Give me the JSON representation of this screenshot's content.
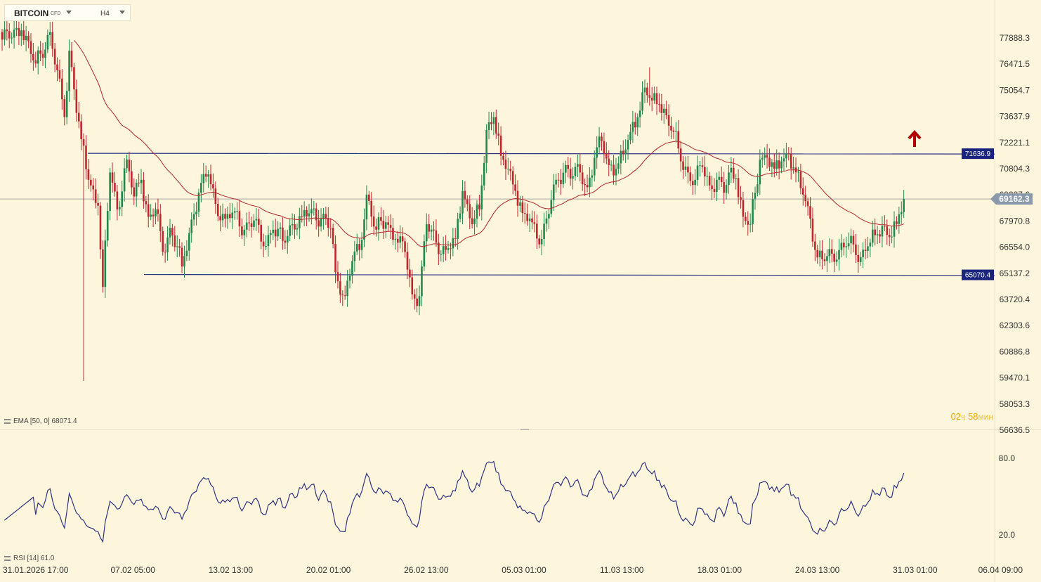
{
  "toolbar": {
    "symbol": "BITCOIN",
    "symbol_type": "CFD",
    "timeframe": "H4"
  },
  "timer": {
    "hours": "02",
    "hours_unit": "ч",
    "minutes": "58",
    "minutes_unit": "мин"
  },
  "indicators": {
    "ema_label": "EMA [50, 0] 68071.4",
    "rsi_label": "RSI [14] 61.0"
  },
  "colors": {
    "background": "#fdf5dc",
    "bull": "#1f8a4c",
    "bear": "#c0272d",
    "ema": "#b3262b",
    "rsi": "#2e3382",
    "level_line": "#2e3382",
    "level_tag": "#1a237e",
    "price_tag": "#8a9aaa",
    "arrow": "#b00000"
  },
  "chart_data": {
    "type": "candlestick",
    "price_axis": {
      "ticks": [
        "77888.3",
        "76471.5",
        "75054.7",
        "73637.9",
        "72221.1",
        "70804.3",
        "69387.6",
        "67970.8",
        "66554.0",
        "65137.2",
        "63720.4",
        "62303.6",
        "60886.8",
        "59470.1",
        "58053.3",
        "56636.5"
      ],
      "range": [
        56636.5,
        78700
      ]
    },
    "time_axis": {
      "ticks": [
        "31.01.2026 17:00",
        "07.02 05:00",
        "13.02 13:00",
        "20.02 01:00",
        "26.02 13:00",
        "05.03 01:00",
        "11.03 13:00",
        "18.03 01:00",
        "24.03 13:00",
        "31.03 01:00",
        "06.04 09:00"
      ]
    },
    "current_price": "69162.3",
    "levels": [
      {
        "price": "71636.9",
        "label": "71636.9"
      },
      {
        "price": "65070.4",
        "label": "65070.4"
      }
    ],
    "rsi_axis": {
      "ticks": [
        "80.0",
        "20.0"
      ],
      "range": [
        14,
        86
      ]
    },
    "ema_period": 50,
    "rsi_period": 14,
    "anchors": [
      [
        0,
        77800
      ],
      [
        8,
        78300
      ],
      [
        14,
        76500
      ],
      [
        20,
        78200
      ],
      [
        26,
        73600
      ],
      [
        28,
        77200
      ],
      [
        30,
        75100
      ],
      [
        33,
        72400
      ],
      [
        36,
        70200
      ],
      [
        40,
        68800
      ],
      [
        42,
        64400
      ],
      [
        45,
        70600
      ],
      [
        48,
        68600
      ],
      [
        52,
        71300
      ],
      [
        55,
        69300
      ],
      [
        58,
        70200
      ],
      [
        61,
        68200
      ],
      [
        64,
        68600
      ],
      [
        67,
        66300
      ],
      [
        70,
        67600
      ],
      [
        73,
        66600
      ],
      [
        75,
        65500
      ],
      [
        78,
        67300
      ],
      [
        82,
        69500
      ],
      [
        86,
        70500
      ],
      [
        89,
        68900
      ],
      [
        93,
        68100
      ],
      [
        97,
        68500
      ],
      [
        101,
        67500
      ],
      [
        105,
        68000
      ],
      [
        109,
        66600
      ],
      [
        113,
        67500
      ],
      [
        117,
        66900
      ],
      [
        121,
        67800
      ],
      [
        125,
        68200
      ],
      [
        129,
        68600
      ],
      [
        133,
        68100
      ],
      [
        137,
        67600
      ],
      [
        139,
        65200
      ],
      [
        143,
        63900
      ],
      [
        146,
        65800
      ],
      [
        149,
        66400
      ],
      [
        152,
        69400
      ],
      [
        156,
        67500
      ],
      [
        160,
        67900
      ],
      [
        164,
        67000
      ],
      [
        168,
        66300
      ],
      [
        171,
        64000
      ],
      [
        174,
        63900
      ],
      [
        177,
        67800
      ],
      [
        181,
        66800
      ],
      [
        185,
        66400
      ],
      [
        189,
        67000
      ],
      [
        192,
        69600
      ],
      [
        196,
        67800
      ],
      [
        199,
        68600
      ],
      [
        202,
        72900
      ],
      [
        205,
        73600
      ],
      [
        208,
        71500
      ],
      [
        211,
        70800
      ],
      [
        214,
        69600
      ],
      [
        217,
        68400
      ],
      [
        221,
        67900
      ],
      [
        225,
        67000
      ],
      [
        229,
        69100
      ],
      [
        232,
        70200
      ],
      [
        235,
        71000
      ],
      [
        238,
        70400
      ],
      [
        241,
        70600
      ],
      [
        244,
        69800
      ],
      [
        247,
        71400
      ],
      [
        250,
        72300
      ],
      [
        253,
        71000
      ],
      [
        256,
        70800
      ],
      [
        259,
        71600
      ],
      [
        262,
        72800
      ],
      [
        265,
        73600
      ],
      [
        268,
        75200
      ],
      [
        271,
        74500
      ],
      [
        274,
        74300
      ],
      [
        277,
        73700
      ],
      [
        280,
        72800
      ],
      [
        283,
        71200
      ],
      [
        286,
        70600
      ],
      [
        289,
        70200
      ],
      [
        292,
        70900
      ],
      [
        295,
        69900
      ],
      [
        298,
        70200
      ],
      [
        301,
        69500
      ],
      [
        303,
        70600
      ],
      [
        306,
        70300
      ],
      [
        309,
        68200
      ],
      [
        312,
        67800
      ],
      [
        314,
        69500
      ],
      [
        316,
        71300
      ],
      [
        319,
        71400
      ],
      [
        322,
        70800
      ],
      [
        325,
        71200
      ],
      [
        328,
        71600
      ],
      [
        331,
        70600
      ],
      [
        334,
        69400
      ],
      [
        337,
        68100
      ],
      [
        340,
        66000
      ],
      [
        343,
        65800
      ],
      [
        346,
        66200
      ],
      [
        349,
        66400
      ],
      [
        352,
        66600
      ],
      [
        355,
        66700
      ],
      [
        358,
        66000
      ],
      [
        361,
        66600
      ],
      [
        364,
        67200
      ],
      [
        367,
        67700
      ],
      [
        370,
        67100
      ],
      [
        373,
        67800
      ],
      [
        376,
        69162
      ]
    ],
    "series": [
      {
        "name": "BITCOIN",
        "values": "ohlc candles generated from anchors"
      },
      {
        "name": "EMA [50, 0]",
        "values": "computed from closes"
      },
      {
        "name": "RSI [14]",
        "values": "computed from closes"
      }
    ]
  }
}
